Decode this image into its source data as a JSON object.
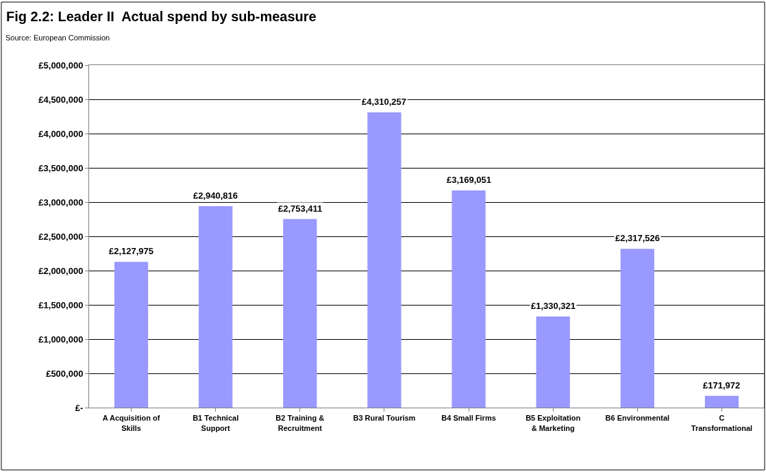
{
  "chart_data": {
    "type": "bar",
    "title": "Fig 2.2: Leader II  Actual spend by sub-measure",
    "annotations": [
      "Source: European Commission"
    ],
    "categories": [
      "A Acquisition of Skills",
      "B1 Technical Support",
      "B2 Training & Recruitment",
      "B3 Rural Tourism",
      "B4 Small Firms",
      "B5 Exploitation & Marketing",
      "B6 Environmental",
      "C Transformational"
    ],
    "values": [
      2127975,
      2940816,
      2753411,
      4310257,
      3169051,
      1330321,
      2317526,
      171972
    ],
    "value_labels": [
      "£2,127,975",
      "£2,940,816",
      "£2,753,411",
      "£4,310,257",
      "£3,169,051",
      "£1,330,321",
      "£2,317,526",
      "£171,972"
    ],
    "color": "#9999ff",
    "ylim": [
      0,
      5000000
    ],
    "yticks": [
      {
        "value": 0,
        "label": "£-"
      },
      {
        "value": 500000,
        "label": "£500,000"
      },
      {
        "value": 1000000,
        "label": "£1,000,000"
      },
      {
        "value": 1500000,
        "label": "£1,500,000"
      },
      {
        "value": 2000000,
        "label": "£2,000,000"
      },
      {
        "value": 2500000,
        "label": "£2,500,000"
      },
      {
        "value": 3000000,
        "label": "£3,000,000"
      },
      {
        "value": 3500000,
        "label": "£3,500,000"
      },
      {
        "value": 4000000,
        "label": "£4,000,000"
      },
      {
        "value": 4500000,
        "label": "£4,500,000"
      },
      {
        "value": 5000000,
        "label": "£5,000,000"
      }
    ],
    "grid": "y"
  }
}
